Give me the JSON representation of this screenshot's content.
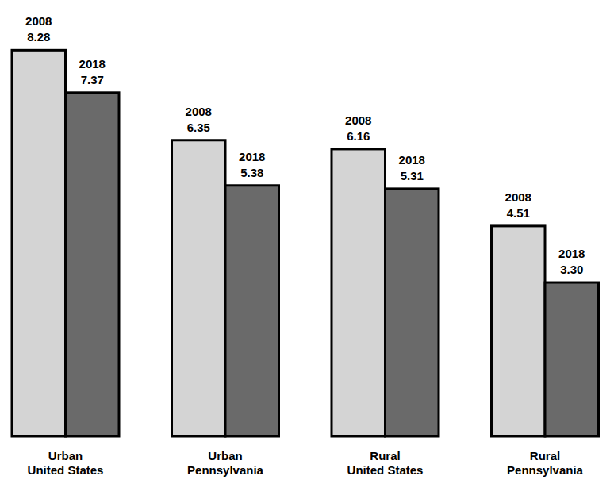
{
  "chart_data": {
    "type": "bar",
    "categories": [
      "Urban United States",
      "Urban Pennsylvania",
      "Rural United States",
      "Rural Pennsylvania"
    ],
    "series": [
      {
        "name": "2008",
        "color": "#d4d4d4",
        "values": [
          8.28,
          6.35,
          6.16,
          4.51
        ],
        "value_labels": [
          "8.28",
          "6.35",
          "6.16",
          "4.51"
        ]
      },
      {
        "name": "2018",
        "color": "#6a6a6a",
        "values": [
          7.37,
          5.38,
          5.31,
          3.3
        ],
        "value_labels": [
          "7.37",
          "5.38",
          "5.31",
          "3.30"
        ]
      }
    ],
    "ylim": [
      0,
      9
    ],
    "grid": false,
    "data_labels": true,
    "tick_labels": "x"
  }
}
